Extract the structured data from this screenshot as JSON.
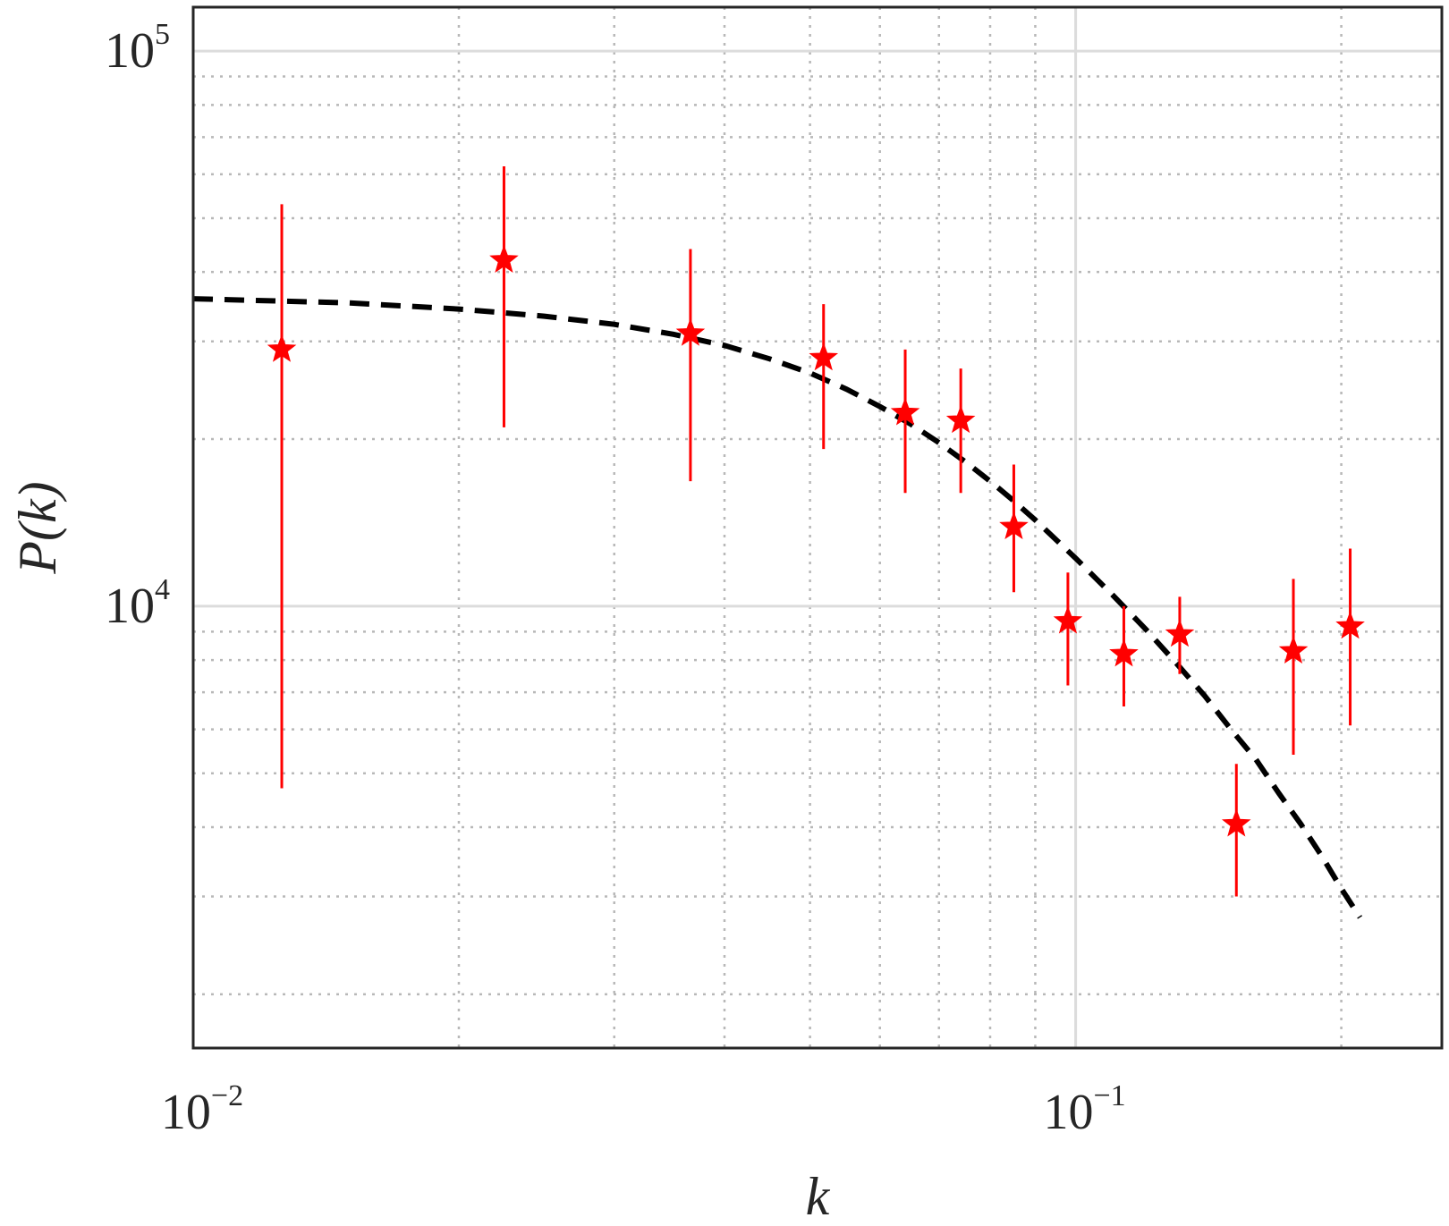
{
  "chart_data": {
    "type": "scatter",
    "title": "",
    "xlabel": "k",
    "ylabel": "P(k)",
    "xscale": "log",
    "yscale": "log",
    "xlim": [
      0.01,
      0.26
    ],
    "ylim": [
      1600,
      120000
    ],
    "grid": true,
    "legend": "none",
    "x_ticks": [
      {
        "base": "10",
        "exp": "−2",
        "value": 0.01
      },
      {
        "base": "10",
        "exp": "−1",
        "value": 0.1
      }
    ],
    "y_ticks": [
      {
        "base": "10",
        "exp": "4",
        "value": 10000
      },
      {
        "base": "10",
        "exp": "5",
        "value": 100000
      }
    ],
    "series": [
      {
        "type": "errorbar",
        "marker": "star",
        "color": "#ff0000",
        "points": [
          {
            "x": 0.0126,
            "y": 29000,
            "lo": 4700,
            "hi": 53000
          },
          {
            "x": 0.0225,
            "y": 42000,
            "lo": 21000,
            "hi": 62000
          },
          {
            "x": 0.0366,
            "y": 31000,
            "lo": 16800,
            "hi": 44000
          },
          {
            "x": 0.0518,
            "y": 28000,
            "lo": 19200,
            "hi": 35000
          },
          {
            "x": 0.0641,
            "y": 22300,
            "lo": 16000,
            "hi": 29000
          },
          {
            "x": 0.0741,
            "y": 21600,
            "lo": 16000,
            "hi": 26800
          },
          {
            "x": 0.0851,
            "y": 13900,
            "lo": 10600,
            "hi": 18000
          },
          {
            "x": 0.098,
            "y": 9400,
            "lo": 7200,
            "hi": 11500
          },
          {
            "x": 0.1134,
            "y": 8200,
            "lo": 6600,
            "hi": 10000
          },
          {
            "x": 0.1312,
            "y": 8900,
            "lo": 7550,
            "hi": 10400
          },
          {
            "x": 0.1521,
            "y": 4050,
            "lo": 3000,
            "hi": 5200
          },
          {
            "x": 0.1765,
            "y": 8300,
            "lo": 5400,
            "hi": 11200
          },
          {
            "x": 0.2047,
            "y": 9200,
            "lo": 6100,
            "hi": 12700
          }
        ]
      },
      {
        "type": "line",
        "style": "dashed",
        "color": "#000000",
        "x": [
          0.01,
          0.015,
          0.02,
          0.025,
          0.03,
          0.035,
          0.04,
          0.045,
          0.05,
          0.055,
          0.06,
          0.065,
          0.07,
          0.075,
          0.08,
          0.085,
          0.09,
          0.1,
          0.11,
          0.12,
          0.13,
          0.14,
          0.15,
          0.16,
          0.17,
          0.18,
          0.19,
          0.2,
          0.21
        ],
        "y": [
          35800,
          35200,
          34300,
          33300,
          32200,
          30900,
          29500,
          27900,
          26300,
          24600,
          22900,
          21300,
          19700,
          18200,
          16800,
          15500,
          14300,
          12200,
          10500,
          9100,
          7900,
          6900,
          6000,
          5300,
          4600,
          4050,
          3550,
          3100,
          2750
        ]
      }
    ]
  }
}
